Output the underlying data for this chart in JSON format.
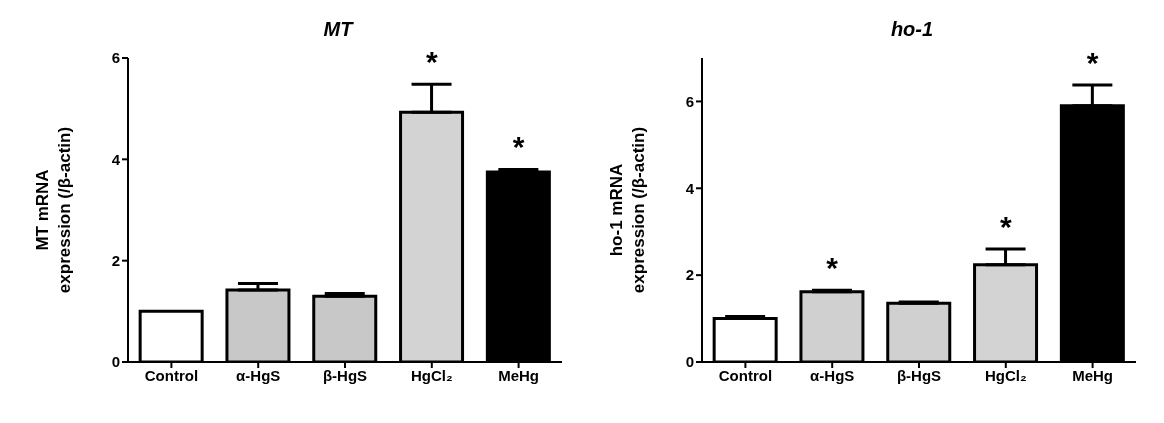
{
  "chart_data": [
    {
      "type": "bar",
      "title": "MT",
      "ylabel": "MT mRNA\nexpression (/β-actin)",
      "categories": [
        "Control",
        "α-HgS",
        "β-HgS",
        "HgCl₂",
        "MeHg"
      ],
      "values": [
        1.0,
        1.42,
        1.3,
        4.93,
        3.75
      ],
      "errors": [
        null,
        [
          1.42,
          1.55
        ],
        [
          1.3,
          1.35
        ],
        [
          4.93,
          5.48
        ],
        [
          3.75,
          3.8
        ]
      ],
      "colors": [
        "#ffffff",
        "#c8c8c8",
        "#c8c8c8",
        "#d3d3d3",
        "#000000"
      ],
      "ylim": [
        0,
        6
      ],
      "yticks": [
        0,
        2,
        4,
        6
      ],
      "grid": false,
      "legend": false,
      "annotations": [
        {
          "text": "*",
          "x": "HgCl₂",
          "y": 5.48
        },
        {
          "text": "*",
          "x": "MeHg",
          "y": 3.8
        }
      ]
    },
    {
      "type": "bar",
      "title": "ho-1",
      "ylabel": "ho-1 mRNA\nexpression (/β-actin)",
      "categories": [
        "Control",
        "α-HgS",
        "β-HgS",
        "HgCl₂",
        "MeHg"
      ],
      "values": [
        1.0,
        1.62,
        1.35,
        2.24,
        5.9
      ],
      "errors": [
        [
          1.0,
          1.05
        ],
        [
          1.62,
          1.65
        ],
        [
          1.35,
          1.38
        ],
        [
          2.24,
          2.6
        ],
        [
          5.9,
          6.38
        ]
      ],
      "colors": [
        "#ffffff",
        "#d0d0d0",
        "#d0d0d0",
        "#d3d3d3",
        "#000000"
      ],
      "ylim": [
        0,
        7
      ],
      "yticks": [
        0,
        2,
        4,
        6
      ],
      "grid": false,
      "legend": false,
      "annotations": [
        {
          "text": "*",
          "x": "α-HgS",
          "y": 1.65
        },
        {
          "text": "*",
          "x": "HgCl₂",
          "y": 2.6
        },
        {
          "text": "*",
          "x": "MeHg",
          "y": 6.38
        }
      ]
    }
  ]
}
